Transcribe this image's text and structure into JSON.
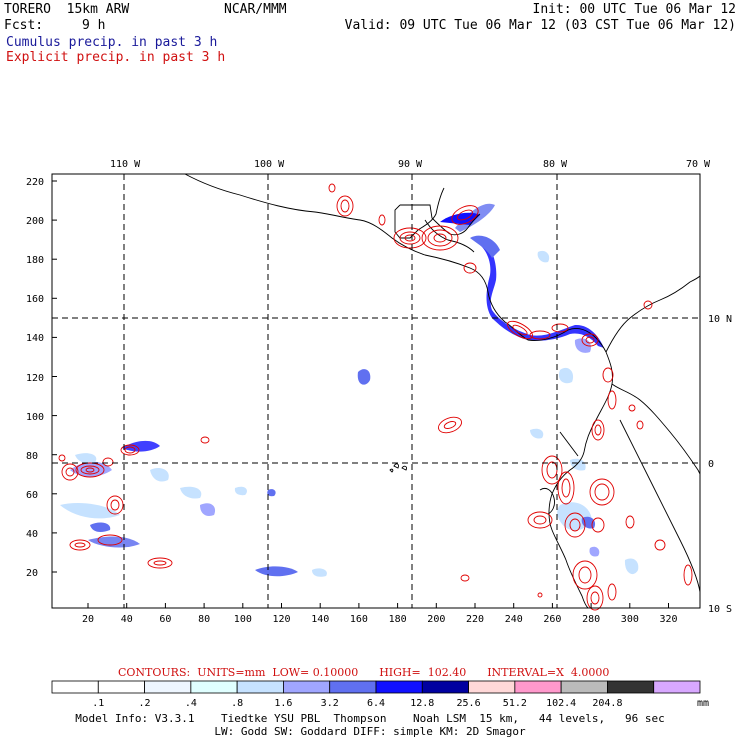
{
  "header": {
    "model": "TORERO  15km ARW",
    "center": "NCAR/MMM",
    "init": "Init: 00 UTC Tue 06 Mar 12",
    "fcst_label": "Fcst:",
    "fcst_value": "9 h",
    "valid": "Valid: 09 UTC Tue 06 Mar 12 (03 CST Tue 06 Mar 12)",
    "field1": "Cumulus precip. in past 3 h",
    "field2": "Explicit precip. in past 3 h"
  },
  "colors": {
    "cumulus": "#1a1a9a",
    "explicit": "#d01010",
    "contour": "#e00000",
    "coast": "#000000"
  },
  "map": {
    "lon_labels": [
      "110 W",
      "100 W",
      "90 W",
      "80 W",
      "70 W"
    ],
    "lat_labels": [
      "10 N",
      "0",
      "10 S"
    ],
    "y_ticks": [
      "220",
      "200",
      "180",
      "160",
      "140",
      "120",
      "100",
      "80",
      "60",
      "40",
      "20"
    ],
    "x_ticks": [
      "20",
      "40",
      "60",
      "80",
      "100",
      "120",
      "140",
      "160",
      "180",
      "200",
      "220",
      "240",
      "260",
      "280",
      "300",
      "320"
    ]
  },
  "contours": {
    "units_label": "CONTOURS:  UNITS=mm  LOW= 0.10000      HIGH=  102.40      INTERVAL=X  4.0000"
  },
  "colorbar": {
    "colors": [
      "#ffffff",
      "#ffffff",
      "#eef6ff",
      "#e0ffff",
      "#c6e2ff",
      "#a0a6ff",
      "#6070f0",
      "#1010ff",
      "#0000a0",
      "#ffd8d8",
      "#ff99cc",
      "#bbbbbb",
      "#333333",
      "#d8a8ff"
    ],
    "labels": [
      ".1",
      ".2",
      ".4",
      ".8",
      "1.6",
      "3.2",
      "6.4",
      "12.8",
      "25.6",
      "51.2",
      "102.4",
      "204.8"
    ],
    "unit": "mm"
  },
  "footer": {
    "line1": "Model Info: V3.3.1    Tiedtke YSU PBL  Thompson    Noah LSM  15 km,   44 levels,   96 sec",
    "line2": "LW: Godd SW: Goddard DIFF: simple KM: 2D Smagor"
  }
}
